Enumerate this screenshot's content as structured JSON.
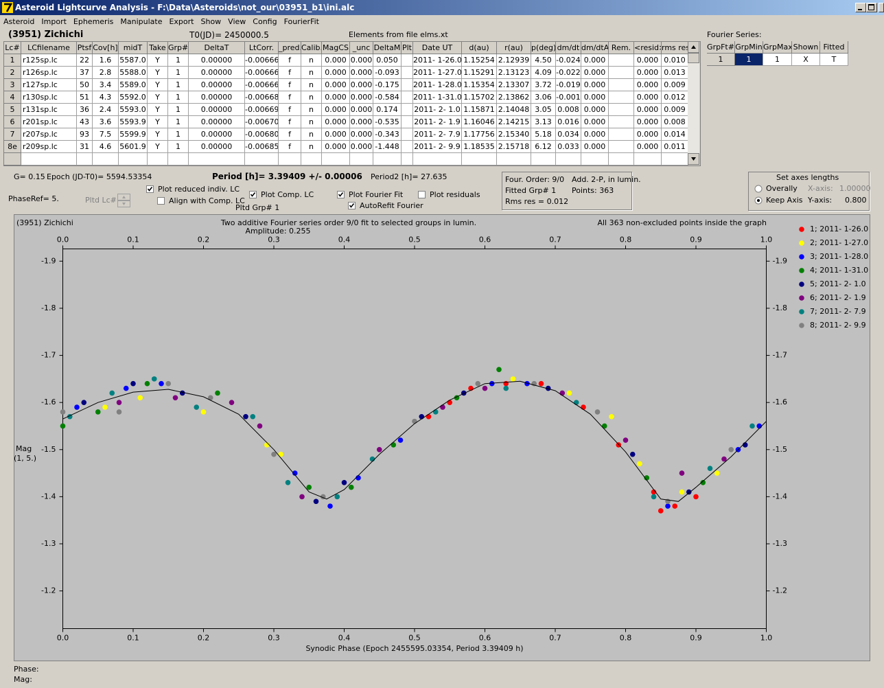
{
  "window": {
    "title": "Asteroid Lightcurve Analysis - F:\\Data\\Asteroids\\not_our\\03951_b1\\ini.alc"
  },
  "menu": [
    "Asteroid",
    "Import",
    "Ephemeris",
    "Manipulate",
    "Export",
    "Show",
    "View",
    "Config",
    "FourierFit"
  ],
  "header": {
    "asteroid": "(3951) Zichichi",
    "t0": "T0(JD)= 2450000.5",
    "elements": "Elements from file elms.xt",
    "fourier_label": "Fourier Series:"
  },
  "table": {
    "columns": [
      "Lc#",
      "LCfilename",
      "Ptsf",
      "Cov[h]",
      "midT",
      "Take",
      "Grp#",
      "DeltaT",
      "LtCorr.",
      "_pred.",
      "Calib.",
      "MagCS",
      "_unc",
      "DeltaM",
      "Plt",
      "Date UT",
      "d(au)",
      "r(au)",
      "p(deg)",
      "dm/dt",
      "dm/dtA",
      "Rem.",
      "<resid>",
      "rms res"
    ],
    "rows": [
      [
        "1",
        "r125sp.lc",
        "22",
        "1.6",
        "5587.0",
        "Y",
        "1",
        "0.00000",
        "-0.00666",
        "f",
        "n",
        "0.000",
        "0.000",
        "0.050",
        "2011- 1-26.0",
        "1.15254",
        "2.12939",
        "4.50",
        "-0.024",
        "0.000",
        "0.000",
        "0.010"
      ],
      [
        "2",
        "r126sp.lc",
        "37",
        "2.8",
        "5588.0",
        "Y",
        "1",
        "0.00000",
        "-0.00666",
        "f",
        "n",
        "0.000",
        "0.000",
        "-0.093",
        "2011- 1-27.0",
        "1.15291",
        "2.13123",
        "4.09",
        "-0.022",
        "0.000",
        "0.000",
        "0.013"
      ],
      [
        "3",
        "r127sp.lc",
        "50",
        "3.4",
        "5589.0",
        "Y",
        "1",
        "0.00000",
        "-0.00666",
        "f",
        "n",
        "0.000",
        "0.000",
        "-0.175",
        "2011- 1-28.0",
        "1.15354",
        "2.13307",
        "3.72",
        "-0.019",
        "0.000",
        "0.000",
        "0.009"
      ],
      [
        "4",
        "r130sp.lc",
        "51",
        "4.3",
        "5592.0",
        "Y",
        "1",
        "0.00000",
        "-0.00668",
        "f",
        "n",
        "0.000",
        "0.000",
        "-0.584",
        "2011- 1-31.0",
        "1.15702",
        "2.13862",
        "3.06",
        "-0.001",
        "0.000",
        "0.000",
        "0.012"
      ],
      [
        "5",
        "r131sp.lc",
        "36",
        "2.4",
        "5593.0",
        "Y",
        "1",
        "0.00000",
        "-0.00669",
        "f",
        "n",
        "0.000",
        "0.000",
        "0.174",
        "2011- 2- 1.0",
        "1.15871",
        "2.14048",
        "3.05",
        "0.008",
        "0.000",
        "0.000",
        "0.009"
      ],
      [
        "6",
        "r201sp.lc",
        "43",
        "3.6",
        "5593.9",
        "Y",
        "1",
        "0.00000",
        "-0.00670",
        "f",
        "n",
        "0.000",
        "0.000",
        "-0.535",
        "2011- 2- 1.9",
        "1.16046",
        "2.14215",
        "3.13",
        "0.016",
        "0.000",
        "0.000",
        "0.008"
      ],
      [
        "7",
        "r207sp.lc",
        "93",
        "7.5",
        "5599.9",
        "Y",
        "1",
        "0.00000",
        "-0.00680",
        "f",
        "n",
        "0.000",
        "0.000",
        "-0.343",
        "2011- 2- 7.9",
        "1.17756",
        "2.15340",
        "5.18",
        "0.034",
        "0.000",
        "0.000",
        "0.014"
      ],
      [
        "8e",
        "r209sp.lc",
        "31",
        "4.6",
        "5601.9",
        "Y",
        "1",
        "0.00000",
        "-0.00685",
        "f",
        "n",
        "0.000",
        "0.000",
        "-1.448",
        "2011- 2- 9.9",
        "1.18535",
        "2.15718",
        "6.12",
        "0.033",
        "0.000",
        "0.000",
        "0.011"
      ]
    ]
  },
  "fourier_table": {
    "columns": [
      "GrpFt#",
      "GrpMin",
      "GrpMax",
      "Shown",
      "Fitted"
    ],
    "rows": [
      [
        "1",
        "1",
        "1",
        "X",
        "T"
      ]
    ]
  },
  "info": {
    "g": "G= 0.15",
    "epoch": "Epoch (JD-T0)= 5594.53354",
    "period": "Period [h]= 3.39409 +/- 0.00006",
    "period2": "Period2 [h]= 27.635",
    "phaseref": "PhaseRef= 5.",
    "pltd_lc": "Pltd Lc#:",
    "pltd_grp": "Pltd Grp#  1"
  },
  "checkboxes": [
    {
      "label": "Plot reduced indiv. LC",
      "checked": true
    },
    {
      "label": "Align with Comp. LC",
      "checked": false
    },
    {
      "label": "Plot Comp. LC",
      "checked": true
    },
    {
      "label": "Plot Fourier Fit",
      "checked": true
    },
    {
      "label": "AutoRefit Fourier",
      "checked": true
    },
    {
      "label": "Plot residuals",
      "checked": false
    }
  ],
  "fit_box": {
    "order": "Four. Order:  9/0",
    "mode": "Add. 2-P, in lumin.",
    "grp": "Fitted Grp# 1",
    "points": "Points: 363",
    "rms": "Rms res     = 0.012"
  },
  "axes_box": {
    "title": "Set axes lengths",
    "radios": [
      {
        "label": "Overally",
        "checked": false
      },
      {
        "label": "Keep Axis",
        "checked": true
      }
    ],
    "x_label": "X-axis:",
    "x_value": "1.00000",
    "y_label": "Y-axis:",
    "y_value": "0.800"
  },
  "status": {
    "phase": "Phase:",
    "mag": "Mag:"
  },
  "chart_data": {
    "type": "scatter",
    "title": "Two additive Fourier series order 9/0 fit to selected groups in lumin.",
    "subtitle": "Amplitude: 0.255",
    "object": "(3951) Zichichi",
    "note": "All 363 non-excluded points inside the graph",
    "x_label": "Synodic Phase (Epoch 2455595.03354, Period 3.39409 h)",
    "y_label": [
      "Mag",
      "(1, 5.)"
    ],
    "xlim": [
      0,
      1
    ],
    "xticks": [
      {
        "value": 0,
        "label": "0.0"
      },
      0.1,
      0.2,
      0.3,
      0.4,
      0.5,
      0.6,
      0.7,
      0.8,
      0.9,
      {
        "value": 1,
        "label": "1.0"
      }
    ],
    "ylim": [
      -1.12,
      -1.926
    ],
    "yticks": [
      -1.9,
      -1.8,
      -1.7,
      -1.6,
      -1.5,
      -1.4,
      -1.3,
      -1.2
    ],
    "series": [
      {
        "name": "1; 2011- 1-26.0",
        "color": "#ff0000",
        "x": [
          0.52,
          0.55,
          0.58,
          0.63,
          0.68,
          0.74,
          0.79,
          0.84,
          0.85,
          0.87,
          0.9
        ],
        "values": [
          -1.57,
          -1.6,
          -1.63,
          -1.64,
          -1.64,
          -1.59,
          -1.51,
          -1.41,
          -1.37,
          -1.38,
          -1.4
        ]
      },
      {
        "name": "2; 2011- 1-27.0",
        "color": "#ffff00",
        "x": [
          0.06,
          0.11,
          0.2,
          0.29,
          0.31,
          0.64,
          0.72,
          0.78,
          0.82,
          0.88,
          0.93
        ],
        "values": [
          -1.59,
          -1.61,
          -1.58,
          -1.51,
          -1.49,
          -1.65,
          -1.62,
          -1.57,
          -1.47,
          -1.41,
          -1.45
        ]
      },
      {
        "name": "3; 2011- 1-28.0",
        "color": "#0000ff",
        "x": [
          0.02,
          0.09,
          0.14,
          0.33,
          0.38,
          0.42,
          0.48,
          0.61,
          0.66,
          0.86,
          0.96,
          0.99
        ],
        "values": [
          -1.59,
          -1.63,
          -1.64,
          -1.45,
          -1.38,
          -1.44,
          -1.52,
          -1.64,
          -1.64,
          -1.38,
          -1.5,
          -1.55
        ]
      },
      {
        "name": "4; 2011- 1-31.0",
        "color": "#008000",
        "x": [
          0.0,
          0.05,
          0.12,
          0.22,
          0.35,
          0.41,
          0.47,
          0.56,
          0.62,
          0.77,
          0.83,
          0.91
        ],
        "values": [
          -1.55,
          -1.58,
          -1.64,
          -1.62,
          -1.42,
          -1.42,
          -1.51,
          -1.61,
          -1.67,
          -1.55,
          -1.44,
          -1.43
        ]
      },
      {
        "name": "5; 2011- 2- 1.0",
        "color": "#000080",
        "x": [
          0.03,
          0.1,
          0.17,
          0.26,
          0.36,
          0.4,
          0.51,
          0.57,
          0.69,
          0.81,
          0.89,
          0.97
        ],
        "values": [
          -1.6,
          -1.64,
          -1.62,
          -1.57,
          -1.39,
          -1.43,
          -1.57,
          -1.62,
          -1.63,
          -1.49,
          -1.41,
          -1.51
        ]
      },
      {
        "name": "6; 2011- 2- 1.9",
        "color": "#800080",
        "x": [
          0.08,
          0.16,
          0.24,
          0.28,
          0.34,
          0.45,
          0.54,
          0.6,
          0.71,
          0.8,
          0.88,
          0.94
        ],
        "values": [
          -1.6,
          -1.61,
          -1.6,
          -1.55,
          -1.4,
          -1.5,
          -1.59,
          -1.63,
          -1.62,
          -1.52,
          -1.45,
          -1.48
        ]
      },
      {
        "name": "7; 2011- 2- 7.9",
        "color": "#008080",
        "x": [
          0.01,
          0.07,
          0.13,
          0.19,
          0.27,
          0.32,
          0.39,
          0.44,
          0.53,
          0.63,
          0.73,
          0.84,
          0.92,
          0.98
        ],
        "values": [
          -1.57,
          -1.62,
          -1.65,
          -1.59,
          -1.57,
          -1.43,
          -1.4,
          -1.48,
          -1.58,
          -1.63,
          -1.6,
          -1.4,
          -1.46,
          -1.55
        ]
      },
      {
        "name": "8; 2011- 2- 9.9",
        "color": "#808080",
        "x": [
          0.0,
          0.08,
          0.15,
          0.21,
          0.3,
          0.37,
          0.5,
          0.59,
          0.67,
          0.76,
          0.86,
          0.95
        ],
        "values": [
          -1.58,
          -1.58,
          -1.64,
          -1.61,
          -1.49,
          -1.4,
          -1.56,
          -1.64,
          -1.64,
          -1.58,
          -1.39,
          -1.5
        ]
      }
    ],
    "fit_curve": {
      "color": "#000000",
      "x": [
        0,
        0.05,
        0.1,
        0.15,
        0.2,
        0.25,
        0.3,
        0.35,
        0.375,
        0.4,
        0.45,
        0.5,
        0.55,
        0.6,
        0.65,
        0.7,
        0.75,
        0.8,
        0.85,
        0.875,
        0.9,
        0.95,
        1
      ],
      "values": [
        -1.565,
        -1.6,
        -1.622,
        -1.628,
        -1.612,
        -1.575,
        -1.5,
        -1.41,
        -1.395,
        -1.415,
        -1.49,
        -1.555,
        -1.605,
        -1.64,
        -1.645,
        -1.625,
        -1.575,
        -1.495,
        -1.395,
        -1.39,
        -1.42,
        -1.485,
        -1.56
      ]
    }
  }
}
